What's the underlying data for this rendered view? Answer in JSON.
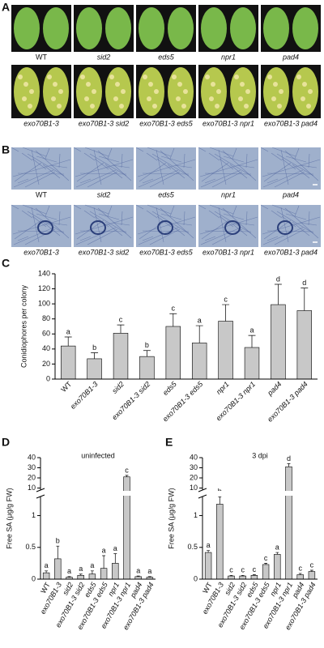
{
  "panel_a": {
    "label": "A",
    "captions": [
      "WT",
      "sid2",
      "eds5",
      "npr1",
      "pad4",
      "exo70B1-3",
      "exo70B1-3 sid2",
      "exo70B1-3 eds5",
      "exo70B1-3 npr1",
      "exo70B1-3 pad4"
    ]
  },
  "panel_b": {
    "label": "B",
    "captions": [
      "WT",
      "sid2",
      "eds5",
      "npr1",
      "pad4",
      "exo70B1-3",
      "exo70B1-3 sid2",
      "exo70B1-3 eds5",
      "exo70B1-3 npr1",
      "exo70B1-3 pad4"
    ]
  },
  "chart_data": [
    {
      "type": "bar",
      "label": "C",
      "ylabel": "Conidiophores per colony",
      "categories": [
        "WT",
        "exo70B1-3",
        "sid2",
        "exo70B1-3 sid2",
        "eds5",
        "exo70B1-3 eds5",
        "npr1",
        "exo70B1-3 npr1",
        "pad4",
        "exo70B1-3 pad4"
      ],
      "values": [
        44,
        27,
        61,
        30,
        70,
        48,
        77,
        42,
        99,
        91
      ],
      "errors": [
        12,
        8,
        11,
        8,
        17,
        23,
        22,
        16,
        27,
        30
      ],
      "letters": [
        "a",
        "b",
        "c",
        "b",
        "c",
        "a",
        "c",
        "a",
        "d",
        "d"
      ],
      "color": "#c8c8c8",
      "ylim": [
        0,
        140
      ],
      "yticks": [
        0,
        20,
        40,
        60,
        80,
        100,
        120,
        140
      ]
    },
    {
      "type": "bar",
      "label": "D",
      "title": "uninfected",
      "ylabel": "Free SA (μg/g FW)",
      "categories": [
        "WT",
        "exo70B1-3",
        "sid2",
        "exo70B1-3 sid2",
        "eds5",
        "exo70B1-3 eds5",
        "npr1",
        "exo70B1-3 npr1",
        "pad4",
        "exo70B1-3 pad4"
      ],
      "values": [
        0.1,
        0.32,
        0.03,
        0.06,
        0.08,
        0.17,
        0.25,
        21,
        0.04,
        0.03
      ],
      "errors": [
        0.03,
        0.2,
        0.01,
        0.02,
        0.05,
        0.2,
        0.15,
        1.5,
        0.01,
        0.01
      ],
      "letters": [
        "a",
        "b",
        "a",
        "a",
        "a",
        "a",
        "a",
        "c",
        "a",
        "a"
      ],
      "color": "#c8c8c8",
      "ylim_lower": [
        0,
        1.3
      ],
      "yticks_lower": [
        0,
        0.5,
        1
      ],
      "ylim_upper": [
        8,
        40
      ],
      "yticks_upper": [
        10,
        20,
        30,
        40
      ]
    },
    {
      "type": "bar",
      "label": "E",
      "title": "3 dpi",
      "ylabel": "Free SA (μg/g FW)",
      "categories": [
        "WT",
        "exo70B1-3",
        "sid2",
        "exo70B1-3 sid2",
        "eds5",
        "exo70B1-3 eds5",
        "npr1",
        "exo70B1-3 npr1",
        "pad4",
        "exo70B1-3 pad4"
      ],
      "values": [
        0.42,
        1.18,
        0.05,
        0.05,
        0.06,
        0.23,
        0.39,
        31,
        0.07,
        0.12
      ],
      "errors": [
        0.03,
        0.18,
        0.01,
        0.01,
        0.01,
        0.02,
        0.03,
        3,
        0.02,
        0.02
      ],
      "letters": [
        "a",
        "b",
        "c",
        "c",
        "c",
        "c",
        "a",
        "d",
        "c",
        "c"
      ],
      "color": "#c8c8c8",
      "ylim_lower": [
        0,
        1.3
      ],
      "yticks_lower": [
        0,
        0.5,
        1
      ],
      "ylim_upper": [
        8,
        40
      ],
      "yticks_upper": [
        10,
        20,
        30,
        40
      ]
    }
  ]
}
